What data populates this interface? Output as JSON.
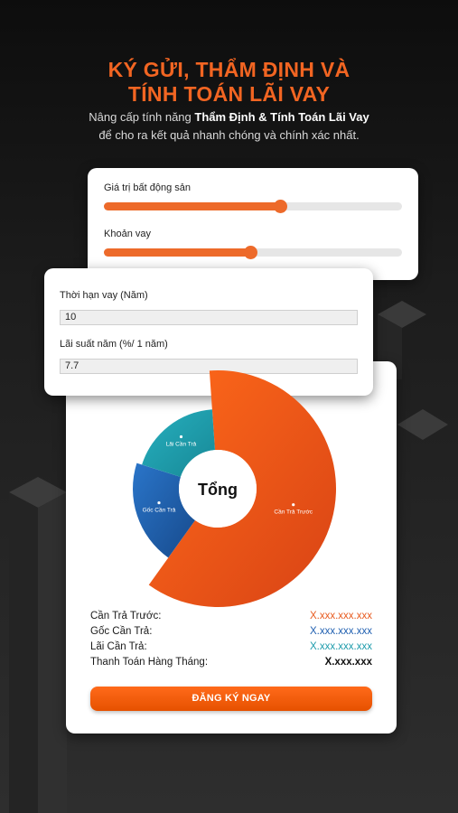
{
  "header": {
    "title_line1": "KÝ GỬI, THẨM ĐỊNH VÀ",
    "title_line2": "TÍNH TOÁN LÃI VAY",
    "subtitle_prefix": "Nâng cấp tính năng ",
    "subtitle_bold": "Thẩm Định & Tính Toán Lãi Vay",
    "subtitle_line2": "để cho ra kết quả nhanh chóng và chính xác nhất."
  },
  "sliders": {
    "property_value": {
      "label": "Giá trị bất động sản",
      "level": 0.59
    },
    "loan_amount": {
      "label": "Khoản vay",
      "level": 0.49
    }
  },
  "inputs": {
    "loan_term": {
      "label": "Thời hạn vay (Năm)",
      "value": "10"
    },
    "interest_rate": {
      "label": "Lãi suất năm (%/ 1 năm)",
      "value": "7.7"
    }
  },
  "chart_data": {
    "type": "pie",
    "center_label": "Tổng",
    "slices": [
      {
        "label": "Cần Trả Trước",
        "share": 0.61,
        "color": "#f4511e"
      },
      {
        "label": "Gốc Cần Trả",
        "share": 0.2,
        "color": "#1f5fb0"
      },
      {
        "label": "Lãi Cần Trả",
        "share": 0.19,
        "color": "#1c9bab"
      }
    ]
  },
  "summary": {
    "rows": [
      {
        "label": "Cần Trả Trước:",
        "value": "X.xxx.xxx.xxx",
        "color": "#e85a1e"
      },
      {
        "label": "Gốc Cần Trả:",
        "value": "X.xxx.xxx.xxx",
        "color": "#1f5fb0"
      },
      {
        "label": "Lãi Cần Trả:",
        "value": "X.xxx.xxx.xxx",
        "color": "#1c9bab"
      },
      {
        "label": "Thanh Toán Hàng Tháng:",
        "value": "X.xxx.xxx",
        "color": "#111111"
      }
    ]
  },
  "cta": {
    "label": "ĐĂNG KÝ NGAY"
  }
}
